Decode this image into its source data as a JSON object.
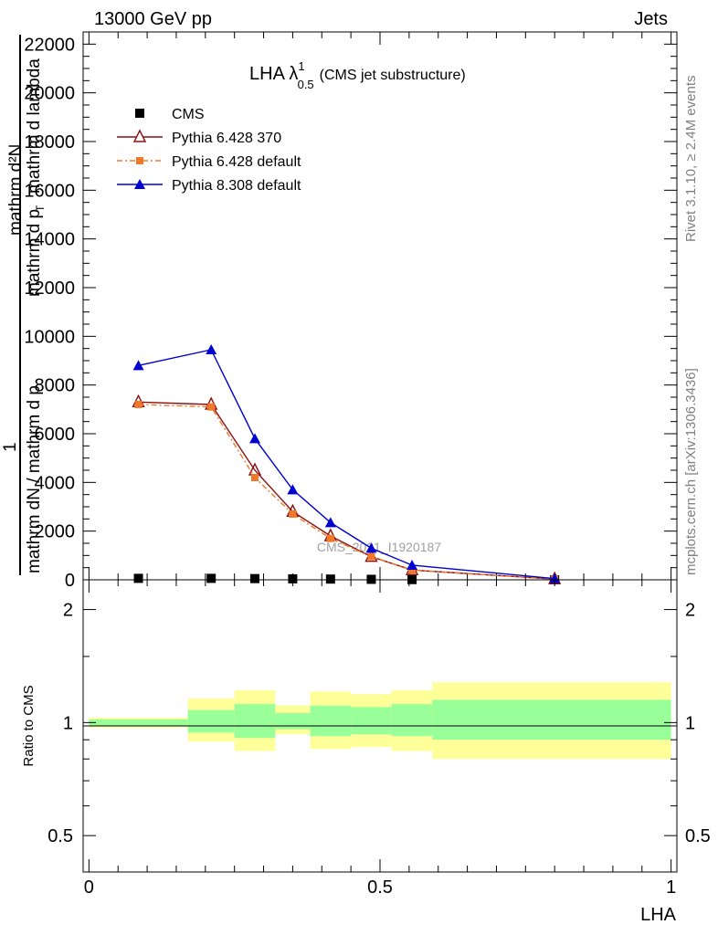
{
  "header": {
    "left": "13000 GeV pp",
    "right": "Jets"
  },
  "side": {
    "rivet": "Rivet 3.1.10, ≥ 2.4M events",
    "mcplots": "mcplots.cern.ch [arXiv:1306.3436]"
  },
  "chart_data": [
    {
      "type": "line",
      "title_main": "LHA λ",
      "title_sup": "1",
      "title_sub": "0.5",
      "title_suffix": "(CMS jet substructure)",
      "watermark": "CMS_2021_I1920187",
      "ylabel_top": "mathrm d²N",
      "ylabel_top2": "mathrm d p",
      "ylabel_t": "T",
      "ylabel_top3": "mathrm d lambda",
      "ylabel_one": "1",
      "ylabel_bottom": "mathrm dN / mathrm d p",
      "ylim": [
        0,
        22500
      ],
      "xlim": [
        -0.01,
        1.01
      ],
      "yticks": [
        0,
        2000,
        4000,
        6000,
        8000,
        10000,
        12000,
        14000,
        16000,
        18000,
        20000,
        22000
      ],
      "ytick_labels": [
        "0",
        "2000",
        "4000",
        "6000",
        "8000",
        "10000",
        "12000",
        "14000",
        "16000",
        "18000",
        "20000",
        "22000"
      ],
      "legend_position": "top-left",
      "series": [
        {
          "name": "CMS",
          "color": "#000000",
          "marker": "square",
          "x": [
            0.085,
            0.21,
            0.285,
            0.35,
            0.415,
            0.485,
            0.555,
            0.8
          ],
          "y": [
            60,
            60,
            50,
            40,
            30,
            20,
            10,
            0
          ]
        },
        {
          "name": "Pythia 6.428 370",
          "color": "#8b1010",
          "marker": "triangle-open",
          "x": [
            0.085,
            0.21,
            0.285,
            0.35,
            0.415,
            0.485,
            0.555,
            0.8
          ],
          "y": [
            7300,
            7200,
            4500,
            2800,
            1800,
            950,
            400,
            30
          ]
        },
        {
          "name": "Pythia 6.428 default",
          "color": "#f07828",
          "marker": "square-small",
          "dashed": true,
          "x": [
            0.085,
            0.21,
            0.285,
            0.35,
            0.415,
            0.485,
            0.555,
            0.8
          ],
          "y": [
            7200,
            7100,
            4200,
            2700,
            1700,
            950,
            400,
            30
          ]
        },
        {
          "name": "Pythia 8.308 default",
          "color": "#0000d0",
          "marker": "triangle",
          "x": [
            0.085,
            0.21,
            0.285,
            0.35,
            0.415,
            0.485,
            0.555,
            0.8
          ],
          "y": [
            8800,
            9450,
            5800,
            3700,
            2350,
            1300,
            600,
            50
          ]
        }
      ]
    },
    {
      "type": "area",
      "ylabel": "Ratio to CMS",
      "xlabel": "LHA",
      "xlim": [
        -0.01,
        1.01
      ],
      "ylim": [
        0.4,
        2.4
      ],
      "log_scale": true,
      "yticks": [
        0.5,
        1,
        2
      ],
      "ytick_labels": [
        "0.5",
        "1",
        "2"
      ],
      "xticks": [
        0,
        0.5,
        1
      ],
      "xtick_labels": [
        "0",
        "0.5",
        "1"
      ],
      "bands": [
        {
          "x0": 0.0,
          "x1": 0.17,
          "y_lo": 0.97,
          "y_hi": 1.03,
          "g_lo": 0.98,
          "g_hi": 1.02
        },
        {
          "x0": 0.17,
          "x1": 0.25,
          "y_lo": 0.89,
          "y_hi": 1.16,
          "g_lo": 0.94,
          "g_hi": 1.08
        },
        {
          "x0": 0.25,
          "x1": 0.32,
          "y_lo": 0.84,
          "y_hi": 1.22,
          "g_lo": 0.91,
          "g_hi": 1.12
        },
        {
          "x0": 0.32,
          "x1": 0.38,
          "y_lo": 0.93,
          "y_hi": 1.11,
          "g_lo": 0.96,
          "g_hi": 1.06
        },
        {
          "x0": 0.38,
          "x1": 0.45,
          "y_lo": 0.85,
          "y_hi": 1.21,
          "g_lo": 0.92,
          "g_hi": 1.11
        },
        {
          "x0": 0.45,
          "x1": 0.52,
          "y_lo": 0.86,
          "y_hi": 1.19,
          "g_lo": 0.93,
          "g_hi": 1.1
        },
        {
          "x0": 0.52,
          "x1": 0.59,
          "y_lo": 0.84,
          "y_hi": 1.22,
          "g_lo": 0.92,
          "g_hi": 1.12
        },
        {
          "x0": 0.59,
          "x1": 1.0,
          "y_lo": 0.8,
          "y_hi": 1.28,
          "g_lo": 0.9,
          "g_hi": 1.15
        }
      ],
      "band_colors": {
        "outer": "#ffff99",
        "inner": "#99ff99"
      },
      "reference_line": 1
    }
  ]
}
